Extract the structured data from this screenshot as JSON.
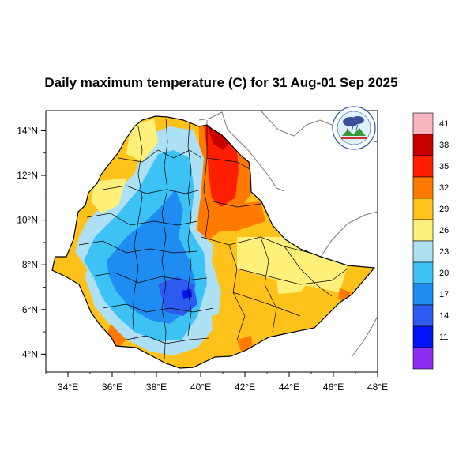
{
  "title": "Daily maximum temperature (C) for 31 Aug-01 Sep 2025",
  "x_ticks": [
    "34°E",
    "36°E",
    "38°E",
    "40°E",
    "42°E",
    "44°E",
    "46°E",
    "48°E"
  ],
  "y_ticks": [
    "14°N",
    "12°N",
    "10°N",
    "8°N",
    "6°N",
    "4°N"
  ],
  "colorbar": {
    "labels": [
      "41",
      "38",
      "35",
      "32",
      "29",
      "26",
      "23",
      "20",
      "17",
      "14",
      "11"
    ],
    "colors": [
      "#f7b6bf",
      "#c80000",
      "#ff1e00",
      "#ff7a00",
      "#ffc21a",
      "#fff07a",
      "#aee0f5",
      "#3cc2f5",
      "#1e8cf0",
      "#2d5af0",
      "#0014f5",
      "#8a2df0"
    ]
  },
  "map": {
    "region": "Ethiopia",
    "lon_range": [
      33,
      48
    ],
    "lat_range": [
      3.2,
      14.9
    ]
  },
  "logo": {
    "name": "meteorology-agency-logo"
  }
}
